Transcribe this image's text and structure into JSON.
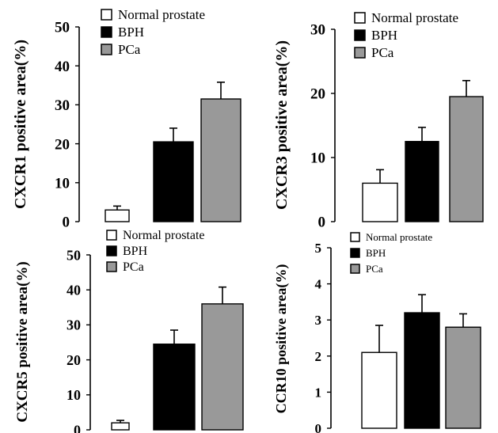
{
  "chart_data": [
    {
      "type": "bar",
      "ylabel": "CXCR1  positive area(%)",
      "ylim": [
        0,
        50
      ],
      "yticks": [
        "0",
        "10",
        "20",
        "30",
        "40",
        "50"
      ],
      "categories": [
        "Normal prostate",
        "BPH",
        "PCa"
      ],
      "values": [
        3,
        20.5,
        31.5
      ],
      "errors": [
        1,
        3.5,
        4.3
      ],
      "colors": [
        "#ffffff",
        "#000000",
        "#999999"
      ],
      "legend": [
        "Normal prostate",
        "BPH",
        "PCa"
      ],
      "legend_position": "top",
      "grid": false
    },
    {
      "type": "bar",
      "ylabel": "CXCR3 positive area(%)",
      "ylim": [
        0,
        30
      ],
      "yticks": [
        "0",
        "10",
        "20",
        "30"
      ],
      "categories": [
        "Normal prostate",
        "BPH",
        "PCa"
      ],
      "values": [
        6,
        12.5,
        19.5
      ],
      "errors": [
        2.1,
        2.2,
        2.5
      ],
      "colors": [
        "#ffffff",
        "#000000",
        "#999999"
      ],
      "legend": [
        "Normal prostate",
        "BPH",
        "PCa"
      ],
      "legend_position": "top-right",
      "grid": false
    },
    {
      "type": "bar",
      "ylabel": "CXCR5 positive area(%)",
      "ylim": [
        0,
        50
      ],
      "yticks": [
        "0",
        "10",
        "20",
        "30",
        "40",
        "50"
      ],
      "categories": [
        "Normal prostate",
        "BPH",
        "PCa"
      ],
      "values": [
        2,
        24.5,
        36
      ],
      "errors": [
        0.7,
        4,
        4.8
      ],
      "colors": [
        "#ffffff",
        "#000000",
        "#999999"
      ],
      "legend": [
        "Normal prostate",
        "BPH",
        "PCa"
      ],
      "legend_position": "top",
      "grid": false
    },
    {
      "type": "bar",
      "ylabel": "CCR10 positive area(%)",
      "ylim": [
        0,
        5
      ],
      "yticks": [
        "0",
        "1",
        "2",
        "3",
        "4",
        "5"
      ],
      "categories": [
        "Normal prostate",
        "BPH",
        "PCa"
      ],
      "values": [
        2.1,
        3.2,
        2.8
      ],
      "errors": [
        0.75,
        0.5,
        0.37
      ],
      "colors": [
        "#ffffff",
        "#000000",
        "#999999"
      ],
      "legend": [
        "Normal prostate",
        "BPH",
        "PCa"
      ],
      "legend_position": "top",
      "grid": false
    }
  ]
}
